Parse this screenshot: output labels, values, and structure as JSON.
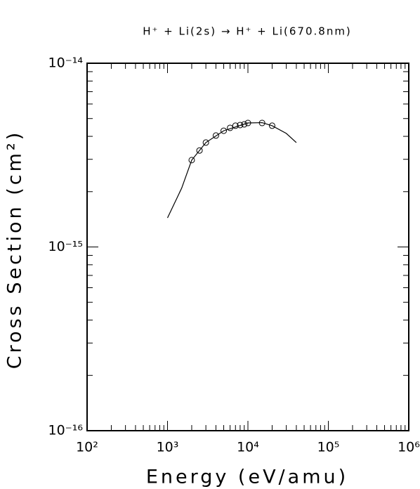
{
  "chart_data": {
    "type": "scatter",
    "title": "H⁺ + Li(2s) → H⁺ + Li(670.8nm)",
    "x_label": "Energy (eV/amu)",
    "y_label": "Cross Section (cm²)",
    "xscale": "log",
    "yscale": "log",
    "xlim": [
      100,
      1000000
    ],
    "ylim": [
      1e-16,
      1e-14
    ],
    "xticks": [
      {
        "value": 100,
        "label": "10²"
      },
      {
        "value": 1000,
        "label": "10³"
      },
      {
        "value": 10000,
        "label": "10⁴"
      },
      {
        "value": 100000,
        "label": "10⁵"
      },
      {
        "value": 1000000,
        "label": "10⁶"
      }
    ],
    "yticks": [
      {
        "value": 1e-16,
        "label": "10⁻¹⁶"
      },
      {
        "value": 1e-15,
        "label": "10⁻¹⁵"
      },
      {
        "value": 1e-14,
        "label": "10⁻¹⁴"
      }
    ],
    "xminorticks": [
      200,
      300,
      400,
      500,
      600,
      700,
      800,
      900,
      2000,
      3000,
      4000,
      5000,
      6000,
      7000,
      8000,
      9000,
      20000,
      30000,
      40000,
      50000,
      60000,
      70000,
      80000,
      90000,
      200000,
      300000,
      400000,
      500000,
      600000,
      700000,
      800000,
      900000
    ],
    "yminorticks": [
      2e-16,
      3e-16,
      4e-16,
      5e-16,
      6e-16,
      7e-16,
      8e-16,
      9e-16,
      2e-15,
      3e-15,
      4e-15,
      5e-15,
      6e-15,
      7e-15,
      8e-15,
      9e-15
    ],
    "series": [
      {
        "style": "line",
        "color": "#000000",
        "x": [
          1000,
          1500,
          2000,
          3000,
          5000,
          10000,
          15000,
          20000,
          30000,
          40000
        ],
        "values": [
          1.44e-15,
          2.09e-15,
          2.97e-15,
          3.7e-15,
          4.29e-15,
          4.73e-15,
          4.75e-15,
          4.57e-15,
          4.15e-15,
          3.7e-15
        ]
      },
      {
        "style": "circle",
        "color": "#000000",
        "x": [
          2000,
          2500,
          3000,
          4000,
          5000,
          6000,
          7000,
          8000,
          9000,
          10000,
          15000,
          20000
        ],
        "values": [
          2.97e-15,
          3.35e-15,
          3.7e-15,
          4.04e-15,
          4.29e-15,
          4.45e-15,
          4.57e-15,
          4.61e-15,
          4.65e-15,
          4.73e-15,
          4.73e-15,
          4.57e-15
        ]
      }
    ]
  }
}
